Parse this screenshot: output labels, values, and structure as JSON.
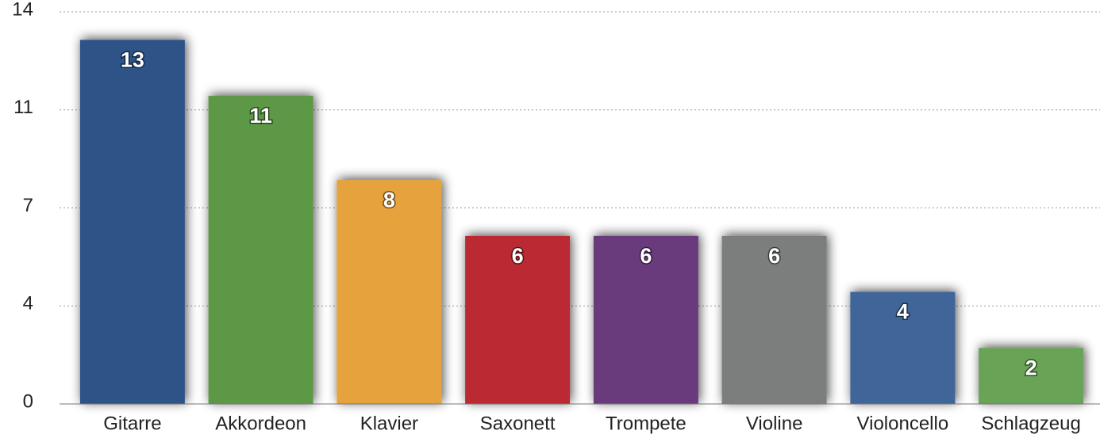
{
  "chart_data": {
    "type": "bar",
    "categories": [
      "Gitarre",
      "Akkordeon",
      "Klavier",
      "Saxonett",
      "Trompete",
      "Violine",
      "Violoncello",
      "Schlagzeug"
    ],
    "values": [
      13,
      11,
      8,
      6,
      6,
      6,
      4,
      2
    ],
    "colors": [
      "#2e5287",
      "#5b9845",
      "#e6a23c",
      "#bb2c31",
      "#6b3a7b",
      "#7c7e7d",
      "#3f6599",
      "#67a356"
    ],
    "ylim": [
      0,
      14
    ],
    "yticks": [
      0,
      {
        "value": 3.5,
        "label": "4"
      },
      7,
      {
        "value": 10.5,
        "label": "11"
      },
      14
    ],
    "grid": true
  }
}
